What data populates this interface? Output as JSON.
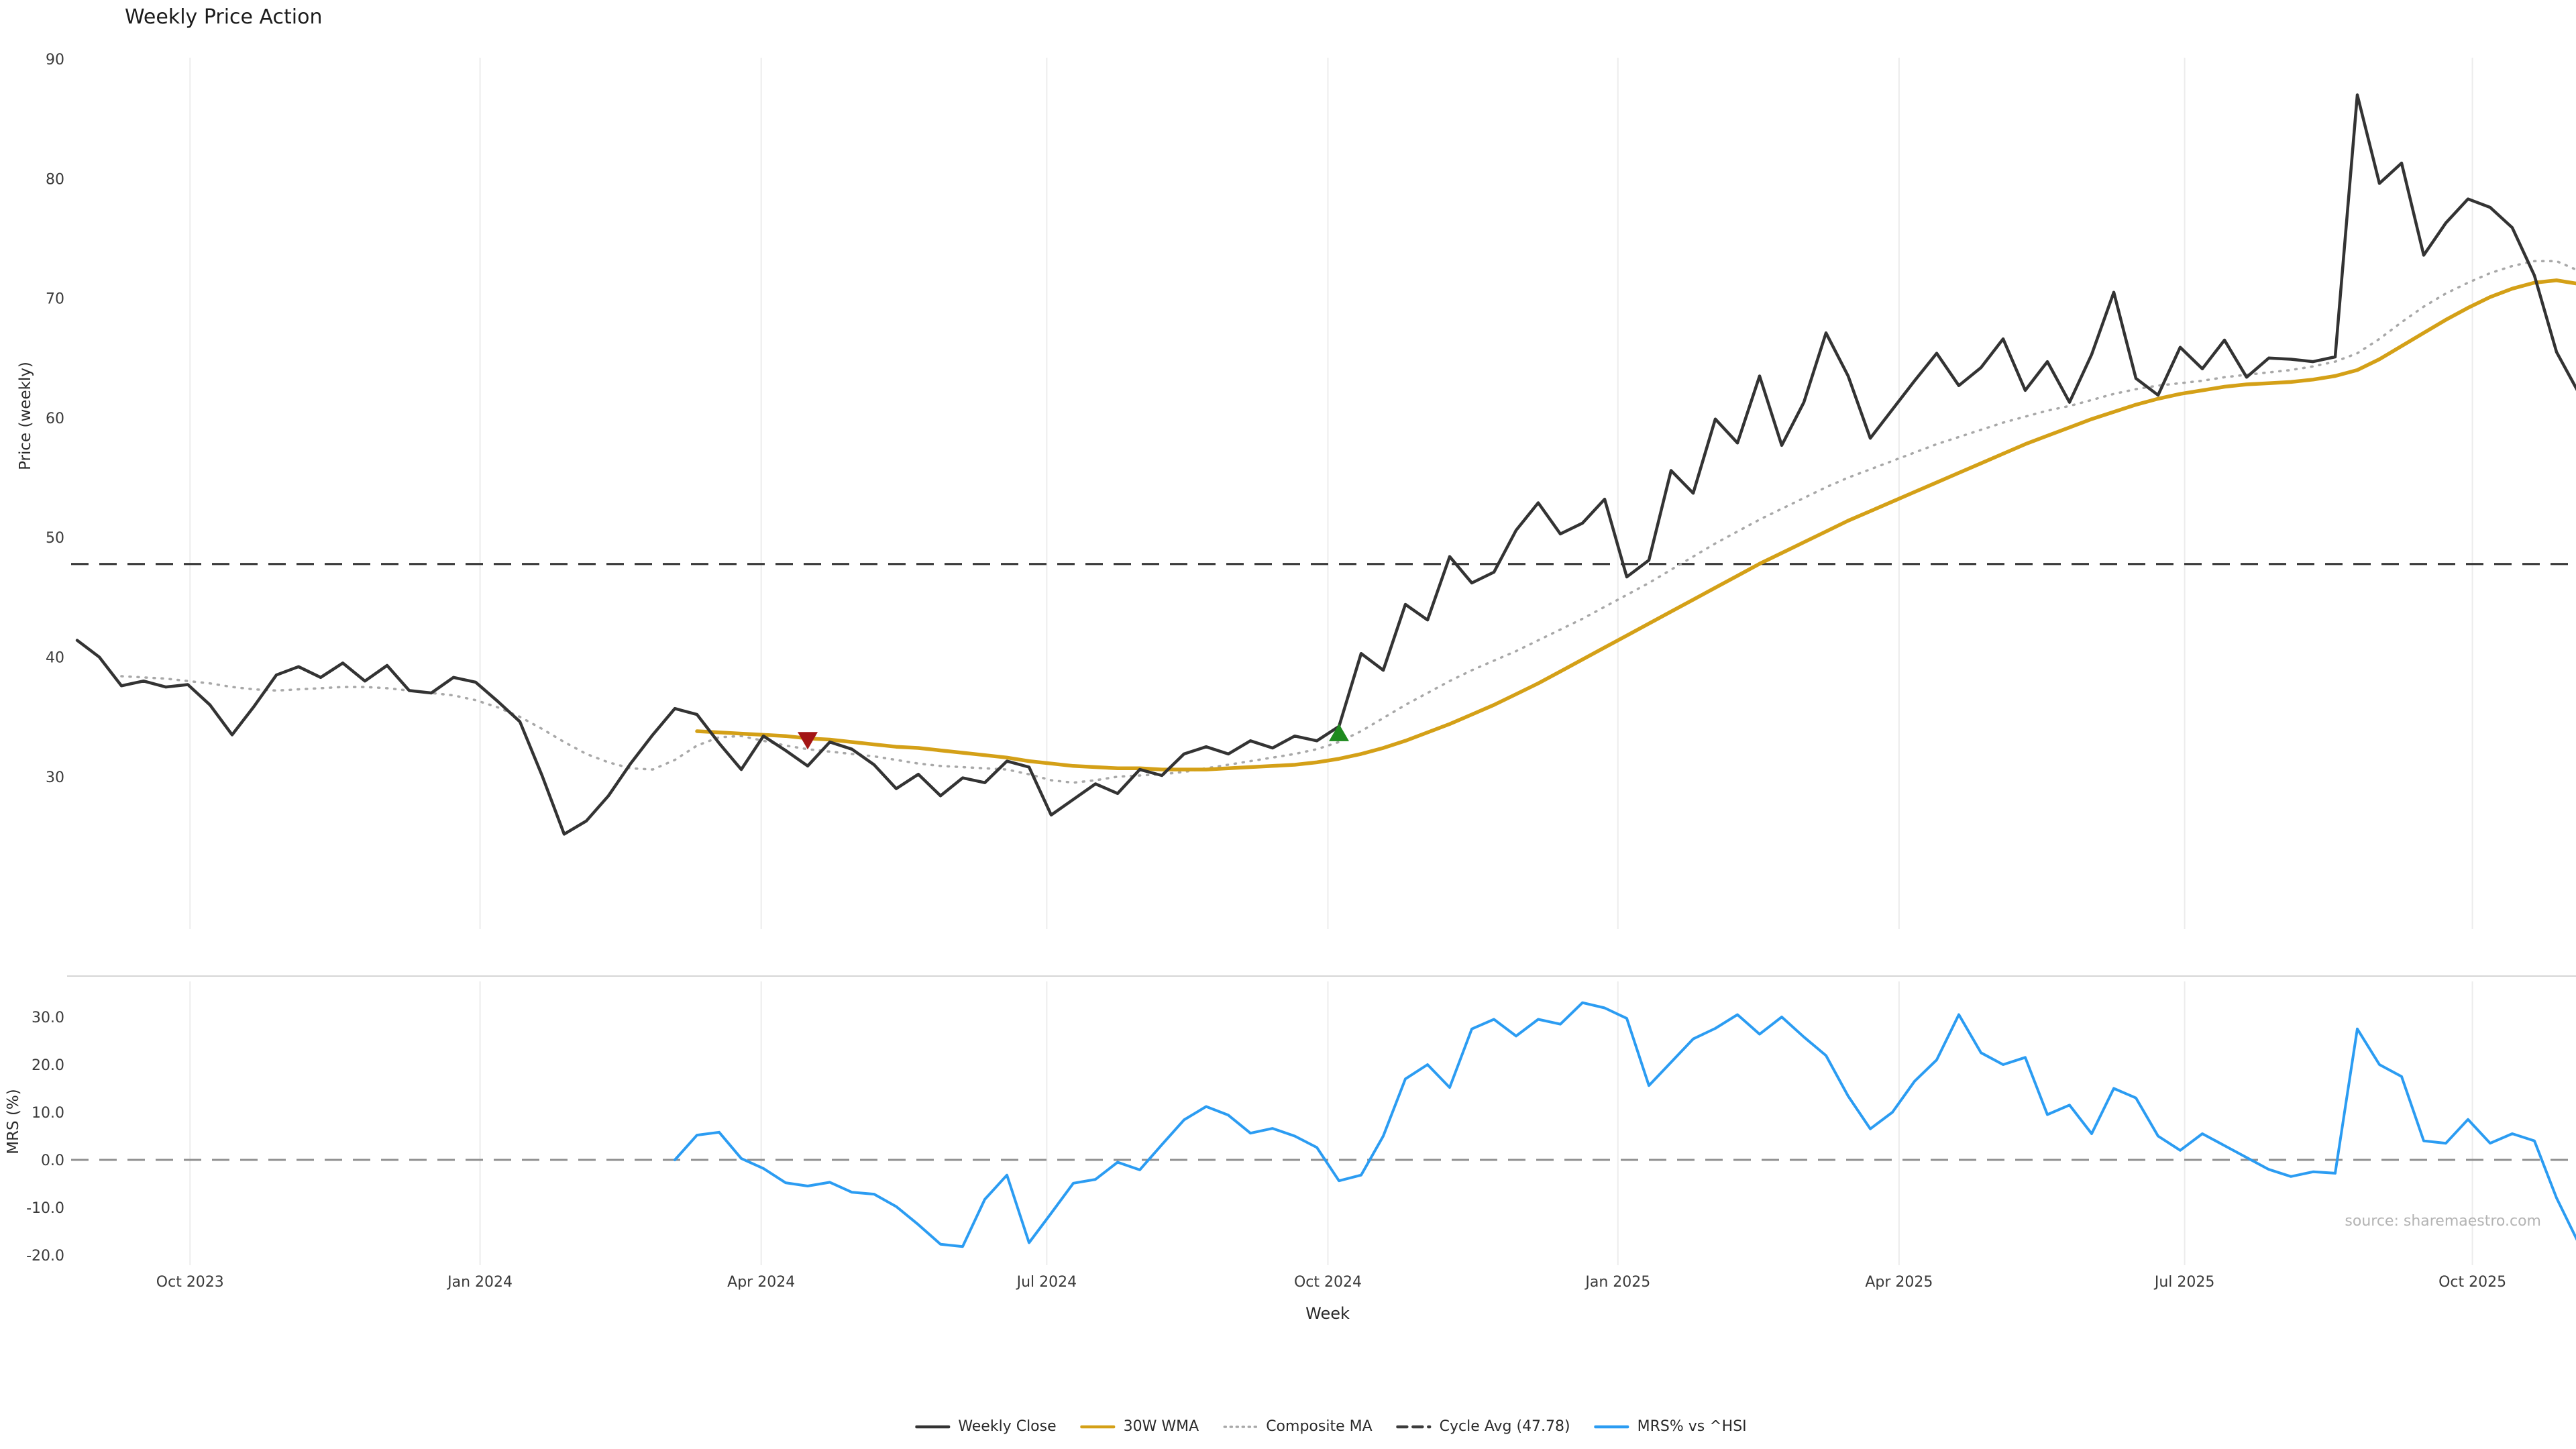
{
  "page": {
    "title": "Weekly Price Action",
    "source_note": "source: sharemaestro.com"
  },
  "chart_data": {
    "type": "line",
    "x_unit": "week_index",
    "xlabel": "Week",
    "x_tick_positions": [
      5.1,
      18.2,
      30.9,
      43.8,
      56.5,
      69.6,
      82.3,
      95.2,
      108.2
    ],
    "x_tick_labels": [
      "Oct 2023",
      "Jan 2024",
      "Apr 2024",
      "Jul 2024",
      "Oct 2024",
      "Jan 2025",
      "Apr 2025",
      "Jul 2025",
      "Oct 2025"
    ],
    "grid": "vertical-only",
    "panels": [
      {
        "id": "price",
        "ylabel": "Price (weekly)",
        "yticks": [
          30,
          40,
          50,
          60,
          70,
          80,
          90
        ],
        "ytick_labels": [
          "30",
          "40",
          "50",
          "60",
          "70",
          "80",
          "90"
        ],
        "ylim": [
          17.2,
          90.1
        ],
        "series": [
          {
            "name": "Weekly Close",
            "color": "#333333",
            "style": "solid",
            "values": [
              41.4,
              40.0,
              37.6,
              38.0,
              37.5,
              37.7,
              36.0,
              33.5,
              35.9,
              38.5,
              39.2,
              38.3,
              39.5,
              38.0,
              39.3,
              37.2,
              37.0,
              38.3,
              37.9,
              36.3,
              34.6,
              30.1,
              25.2,
              26.3,
              28.4,
              31.1,
              33.5,
              35.7,
              35.2,
              32.8,
              30.6,
              33.4,
              32.2,
              30.9,
              32.9,
              32.3,
              31.0,
              29.0,
              30.2,
              28.4,
              29.9,
              29.5,
              31.3,
              30.8,
              26.8,
              28.1,
              29.4,
              28.6,
              30.6,
              30.1,
              31.9,
              32.5,
              31.9,
              33.0,
              32.4,
              33.4,
              33.0,
              34.2,
              40.3,
              38.9,
              44.4,
              43.1,
              48.4,
              46.2,
              47.1,
              50.6,
              52.9,
              50.3,
              51.2,
              53.2,
              46.7,
              48.1,
              55.6,
              53.7,
              59.9,
              57.9,
              63.5,
              57.7,
              61.3,
              67.1,
              63.5,
              58.3,
              60.7,
              63.1,
              65.4,
              62.7,
              64.2,
              66.6,
              62.3,
              64.7,
              61.3,
              65.3,
              70.5,
              63.3,
              61.9,
              65.9,
              64.1,
              66.5,
              63.4,
              65.0,
              64.9,
              64.7,
              65.1,
              87.0,
              79.6,
              81.3,
              73.6,
              76.3,
              78.3,
              77.6,
              75.9,
              71.9,
              65.5,
              62.1
            ]
          },
          {
            "name": "30W WMA",
            "color": "#d4a017",
            "style": "solid",
            "values": [
              null,
              null,
              null,
              null,
              null,
              null,
              null,
              null,
              null,
              null,
              null,
              null,
              null,
              null,
              null,
              null,
              null,
              null,
              null,
              null,
              null,
              null,
              null,
              null,
              null,
              null,
              null,
              null,
              33.8,
              33.7,
              33.6,
              33.5,
              33.4,
              33.2,
              33.1,
              32.9,
              32.7,
              32.5,
              32.4,
              32.2,
              32.0,
              31.8,
              31.6,
              31.3,
              31.1,
              30.9,
              30.8,
              30.7,
              30.7,
              30.6,
              30.6,
              30.6,
              30.7,
              30.8,
              30.9,
              31.0,
              31.2,
              31.5,
              31.9,
              32.4,
              33.0,
              33.7,
              34.4,
              35.2,
              36.0,
              36.9,
              37.8,
              38.8,
              39.8,
              40.8,
              41.8,
              42.8,
              43.8,
              44.8,
              45.8,
              46.8,
              47.8,
              48.7,
              49.6,
              50.5,
              51.4,
              52.2,
              53.0,
              53.8,
              54.6,
              55.4,
              56.2,
              57.0,
              57.8,
              58.5,
              59.2,
              59.9,
              60.5,
              61.1,
              61.6,
              62.0,
              62.3,
              62.6,
              62.8,
              62.9,
              63.0,
              63.2,
              63.5,
              64.0,
              64.9,
              66.0,
              67.1,
              68.2,
              69.2,
              70.1,
              70.8,
              71.3,
              71.5,
              71.2
            ]
          },
          {
            "name": "Composite MA",
            "color": "#a8a8a8",
            "style": "dotted",
            "values": [
              null,
              null,
              38.4,
              38.3,
              38.2,
              38.0,
              37.8,
              37.5,
              37.3,
              37.2,
              37.3,
              37.4,
              37.5,
              37.5,
              37.4,
              37.2,
              37.0,
              36.8,
              36.4,
              35.8,
              35.0,
              34.0,
              32.9,
              31.9,
              31.2,
              30.7,
              30.6,
              31.4,
              32.6,
              33.3,
              33.4,
              33.0,
              32.6,
              32.3,
              32.1,
              31.9,
              31.7,
              31.4,
              31.1,
              30.9,
              30.8,
              30.7,
              30.6,
              30.2,
              29.7,
              29.5,
              29.7,
              30.0,
              30.1,
              30.2,
              30.4,
              30.7,
              31.0,
              31.3,
              31.6,
              31.9,
              32.3,
              32.9,
              33.8,
              34.9,
              36.0,
              37.0,
              38.0,
              38.9,
              39.7,
              40.5,
              41.4,
              42.3,
              43.2,
              44.2,
              45.2,
              46.2,
              47.3,
              48.4,
              49.5,
              50.5,
              51.5,
              52.4,
              53.3,
              54.2,
              55.0,
              55.7,
              56.4,
              57.1,
              57.8,
              58.4,
              59.0,
              59.6,
              60.1,
              60.6,
              61.0,
              61.5,
              62.0,
              62.4,
              62.7,
              62.9,
              63.1,
              63.4,
              63.6,
              63.8,
              64.0,
              64.3,
              64.7,
              65.4,
              66.6,
              68.0,
              69.3,
              70.4,
              71.3,
              72.1,
              72.7,
              73.1,
              73.1,
              72.3
            ]
          }
        ],
        "hlines": [
          {
            "name": "Cycle Avg",
            "label": "Cycle Avg (47.78)",
            "value": 47.78,
            "color": "#3c3c3c",
            "style": "dashed"
          }
        ],
        "markers": [
          {
            "name": "sell-signal",
            "shape": "triangle-down",
            "color": "#a31515",
            "week": 33,
            "value": 33.0
          },
          {
            "name": "buy-signal",
            "shape": "triangle-up",
            "color": "#1e8a1e",
            "week": 57,
            "value": 33.7
          }
        ]
      },
      {
        "id": "mrs",
        "ylabel": "MRS (%)",
        "yticks": [
          30,
          20,
          10,
          0,
          -10,
          -20
        ],
        "ytick_labels": [
          "30.0",
          "20.0",
          "10.0",
          "0.0",
          "-10.0",
          "-20.0"
        ],
        "ylim": [
          -22.4,
          37.5
        ],
        "series": [
          {
            "name": "MRS% vs ^HSI",
            "color": "#2b9cf2",
            "style": "solid",
            "values": [
              null,
              null,
              null,
              null,
              null,
              null,
              null,
              null,
              null,
              null,
              null,
              null,
              null,
              null,
              null,
              null,
              null,
              null,
              null,
              null,
              null,
              null,
              null,
              null,
              null,
              null,
              null,
              0.0,
              5.2,
              5.8,
              0.3,
              -1.8,
              -4.8,
              -5.5,
              -4.7,
              -6.8,
              -7.2,
              -9.8,
              -13.6,
              -17.7,
              -18.2,
              -8.3,
              -3.2,
              -17.4,
              -11.2,
              -4.9,
              -4.1,
              -0.5,
              -2.1,
              3.2,
              8.4,
              11.2,
              9.4,
              5.6,
              6.6,
              5.0,
              2.6,
              -4.4,
              -3.2,
              5.0,
              17.0,
              20.0,
              15.2,
              27.5,
              29.5,
              26.0,
              29.5,
              28.5,
              33.0,
              31.9,
              29.7,
              15.6,
              20.5,
              25.4,
              27.6,
              30.5,
              26.4,
              30.0,
              25.8,
              21.9,
              13.4,
              6.5,
              10.0,
              16.5,
              21.0,
              30.5,
              22.5,
              20.0,
              21.5,
              9.5,
              11.5,
              5.5,
              15.0,
              13.0,
              5.0,
              2.0,
              5.5,
              3.0,
              0.5,
              -2.0,
              -3.5,
              -2.5,
              -2.8,
              27.5,
              20.0,
              17.5,
              4.0,
              3.5,
              8.5,
              3.5,
              5.5,
              4.0,
              -8.0,
              -17.5
            ]
          }
        ],
        "hlines": [
          {
            "name": "zero-line",
            "value": 0,
            "color": "#909090",
            "style": "dashed"
          }
        ]
      }
    ],
    "legend": [
      {
        "label": "Weekly Close",
        "color": "#333333",
        "style": "solid"
      },
      {
        "label": "30W WMA",
        "color": "#d4a017",
        "style": "solid"
      },
      {
        "label": "Composite MA",
        "color": "#a8a8a8",
        "style": "dotted"
      },
      {
        "label": "Cycle Avg (47.78)",
        "color": "#3c3c3c",
        "style": "dashed"
      },
      {
        "label": "MRS% vs ^HSI",
        "color": "#2b9cf2",
        "style": "solid"
      }
    ]
  }
}
